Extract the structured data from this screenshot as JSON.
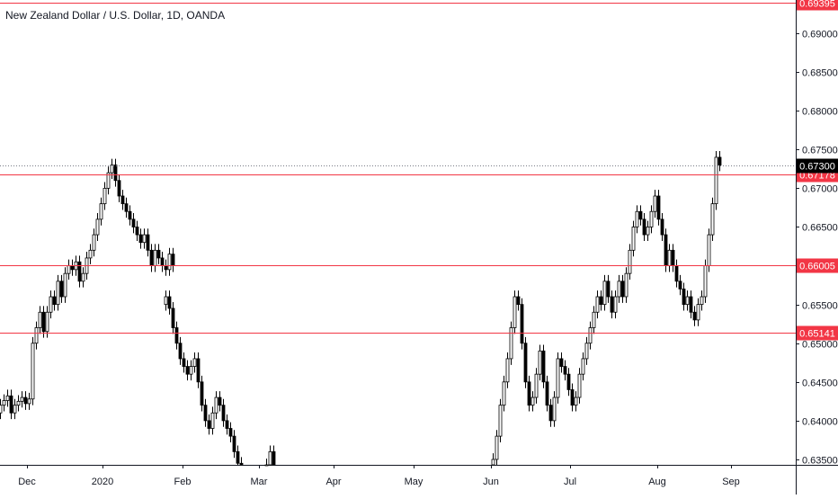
{
  "chart_data": {
    "type": "candlestick",
    "title": "New Zealand Dollar / U.S. Dollar, 1D, OANDA",
    "ylim": [
      0.6343,
      0.6943
    ],
    "y_ticks": [
      "0.69000",
      "0.68500",
      "0.68000",
      "0.67500",
      "0.67000",
      "0.66500",
      "0.66000",
      "0.65500",
      "0.65000",
      "0.64500",
      "0.64000",
      "0.63500"
    ],
    "x_ticks": [
      "Dec",
      "2020",
      "Feb",
      "Mar",
      "Apr",
      "May",
      "Jun",
      "Jul",
      "Aug",
      "Sep"
    ],
    "horizontal_lines": [
      {
        "value": 0.69395,
        "label": "0.69395",
        "color": "#f23645"
      },
      {
        "value": 0.67178,
        "label": "0.67178",
        "color": "#f23645"
      },
      {
        "value": 0.66005,
        "label": "0.66005",
        "color": "#f23645"
      },
      {
        "value": 0.65141,
        "label": "0.65141",
        "color": "#f23645"
      }
    ],
    "last_price": {
      "value": 0.673,
      "label": "0.67300",
      "color": "#000000"
    },
    "colors": {
      "up": "#ffffff",
      "down": "#000000",
      "wick": "#000000",
      "axis_text": "#131722"
    },
    "candle_segments": [
      {
        "x_start": 0,
        "x_step": 4,
        "closes": [
          0.642,
          0.6426,
          0.6432,
          0.641,
          0.642,
          0.6425,
          0.643,
          0.6422,
          0.6428,
          0.65,
          0.652,
          0.654,
          0.6515,
          0.654,
          0.656,
          0.655,
          0.658,
          0.656,
          0.659,
          0.66,
          0.6595,
          0.6605,
          0.658,
          0.659,
          0.661,
          0.662,
          0.664,
          0.666,
          0.668,
          0.67,
          0.672,
          0.673,
          0.671,
          0.669,
          0.668,
          0.667,
          0.666,
          0.665,
          0.664,
          0.663,
          0.664,
          0.662,
          0.66,
          0.662,
          0.661,
          0.66,
          0.6595,
          0.6615,
          0.66
        ]
      },
      {
        "x_start": 184,
        "x_step": 4,
        "closes": [
          0.656,
          0.6545,
          0.652,
          0.65,
          0.648,
          0.647,
          0.646,
          0.647,
          0.648,
          0.645,
          0.642,
          0.64,
          0.639,
          0.641,
          0.643,
          0.642,
          0.64,
          0.639,
          0.638,
          0.636,
          0.6345,
          0.634
        ]
      },
      {
        "x_start": 296,
        "x_step": 4,
        "closes": [
          0.6343,
          0.636,
          0.6343
        ]
      },
      {
        "x_start": 548,
        "x_step": 4,
        "closes": [
          0.635,
          0.638,
          0.642,
          0.645,
          0.648,
          0.652,
          0.656,
          0.655,
          0.65,
          0.645,
          0.642,
          0.643,
          0.646,
          0.649,
          0.645,
          0.642,
          0.64,
          0.643,
          0.648,
          0.647,
          0.646,
          0.644,
          0.642,
          0.643,
          0.646,
          0.648,
          0.65,
          0.652,
          0.654,
          0.656,
          0.655,
          0.658,
          0.656,
          0.654,
          0.656,
          0.658,
          0.656,
          0.659,
          0.662,
          0.665,
          0.667,
          0.666,
          0.664,
          0.665,
          0.667,
          0.669,
          0.666,
          0.664,
          0.66,
          0.662,
          0.66,
          0.658,
          0.657,
          0.655,
          0.656,
          0.654,
          0.653,
          0.655,
          0.656,
          0.66,
          0.664,
          0.668,
          0.674,
          0.673
        ]
      }
    ]
  }
}
